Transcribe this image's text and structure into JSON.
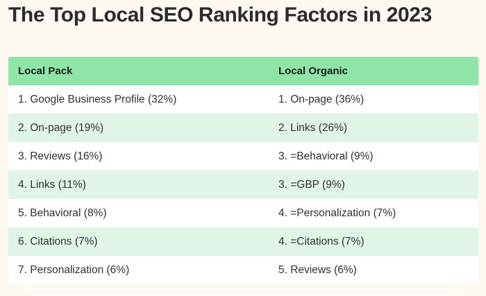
{
  "title": "The Top Local SEO Ranking Factors in 2023",
  "colors": {
    "page_bg": "#fdf9f0",
    "header_bg": "#8fe5a8",
    "row_alt_bg": "#e0f5e8",
    "row_bg": "#ffffff",
    "title_text": "#2b2b2b",
    "header_text": "#1d1d1d",
    "body_text": "#303030"
  },
  "table": {
    "columns": [
      "Local Pack",
      "Local Organic"
    ],
    "rows": [
      {
        "local_pack": "1. Google Business Profile (32%)",
        "local_organic": "1. On-page (36%)"
      },
      {
        "local_pack": "2. On-page (19%)",
        "local_organic": "2. Links (26%)"
      },
      {
        "local_pack": "3. Reviews (16%)",
        "local_organic": "3. =Behavioral (9%)"
      },
      {
        "local_pack": "4. Links (11%)",
        "local_organic": "3. =GBP (9%)"
      },
      {
        "local_pack": "5. Behavioral (8%)",
        "local_organic": "4. =Personalization (7%)"
      },
      {
        "local_pack": "6. Citations (7%)",
        "local_organic": "4. =Citations (7%)"
      },
      {
        "local_pack": "7. Personalization (6%)",
        "local_organic": "5. Reviews (6%)"
      }
    ]
  },
  "chart_data": {
    "type": "table",
    "title": "The Top Local SEO Ranking Factors in 2023",
    "columns": [
      "Local Pack",
      "Local Organic"
    ],
    "rows": [
      [
        "1. Google Business Profile (32%)",
        "1. On-page (36%)"
      ],
      [
        "2. On-page (19%)",
        "2. Links (26%)"
      ],
      [
        "3. Reviews (16%)",
        "3. =Behavioral (9%)"
      ],
      [
        "4. Links (11%)",
        "3. =GBP (9%)"
      ],
      [
        "5. Behavioral (8%)",
        "4. =Personalization (7%)"
      ],
      [
        "6. Citations (7%)",
        "4. =Citations (7%)"
      ],
      [
        "7. Personalization (6%)",
        "5. Reviews (6%)"
      ]
    ],
    "series": [
      {
        "name": "Local Pack",
        "categories": [
          "Google Business Profile",
          "On-page",
          "Reviews",
          "Links",
          "Behavioral",
          "Citations",
          "Personalization"
        ],
        "values_pct": [
          32,
          19,
          16,
          11,
          8,
          7,
          6
        ],
        "ranks": [
          1,
          2,
          3,
          4,
          5,
          6,
          7
        ]
      },
      {
        "name": "Local Organic",
        "categories": [
          "On-page",
          "Links",
          "Behavioral",
          "GBP",
          "Personalization",
          "Citations",
          "Reviews"
        ],
        "values_pct": [
          36,
          26,
          9,
          9,
          7,
          7,
          6
        ],
        "ranks": [
          1,
          2,
          3,
          3,
          4,
          4,
          5
        ],
        "tie_marker": "="
      }
    ],
    "layout": {
      "header_bg": "#8fe5a8",
      "alternating_rows": true,
      "grid": false
    }
  }
}
